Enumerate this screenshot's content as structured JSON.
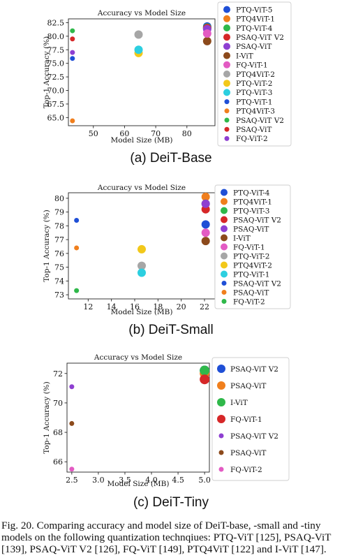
{
  "figure_caption": "Fig. 20.  Comparing accuracy and model size of DeiT-base, -small and -tiny models on the following quantization technqiues: PTQ-ViT [125], PSAQ-ViT [139], PSAQ-ViT V2 [126], FQ-ViT [149], PTQ4ViT [122] and I-ViT [147].",
  "chart_data": [
    {
      "type": "scatter",
      "subcaption": "(a) DeiT-Base",
      "title": "Accuracy vs Model Size",
      "xlabel": "Model Size (MB)",
      "ylabel": "Top-1 Accuracy (%)",
      "xlim": [
        42,
        89
      ],
      "ylim": [
        63.5,
        83.2
      ],
      "xticks": [
        50,
        60,
        70,
        80
      ],
      "yticks": [
        65.0,
        67.5,
        70.0,
        72.5,
        75.0,
        77.5,
        80.0,
        82.5
      ],
      "ytick_labels": [
        "65.0",
        "67.5",
        "70.0",
        "72.5",
        "75.0",
        "77.5",
        "80.0",
        "82.5"
      ],
      "grid": false,
      "legend_position": "right",
      "series": [
        {
          "name": "PTQ-ViT-5",
          "color": "#1f4fd6",
          "size": "large",
          "points": [
            [
              86.5,
              81.8
            ]
          ]
        },
        {
          "name": "PTQ4ViT-1",
          "color": "#f07f1d",
          "size": "large",
          "points": [
            [
              86.5,
              81.5
            ]
          ]
        },
        {
          "name": "PTQ-ViT-4",
          "color": "#2fb84a",
          "size": "large",
          "points": [
            [
              86.5,
              81.6
            ]
          ]
        },
        {
          "name": "PSAQ-ViT V2",
          "color": "#d62728",
          "size": "large",
          "points": [
            [
              86.5,
              81.5
            ]
          ]
        },
        {
          "name": "PSAQ-ViT",
          "color": "#8e3fd1",
          "size": "large",
          "points": [
            [
              86.5,
              81.3
            ]
          ]
        },
        {
          "name": "I-ViT",
          "color": "#8c4a1c",
          "size": "large",
          "points": [
            [
              86.5,
              79.1
            ]
          ]
        },
        {
          "name": "FQ-ViT-1",
          "color": "#e35bc3",
          "size": "large",
          "points": [
            [
              86.5,
              80.5
            ]
          ]
        },
        {
          "name": "PTQ4ViT-2",
          "color": "#a6a6a6",
          "size": "large",
          "points": [
            [
              64.5,
              80.3
            ]
          ]
        },
        {
          "name": "PTQ-ViT-2",
          "color": "#f2c81a",
          "size": "large",
          "points": [
            [
              64.5,
              76.9
            ]
          ]
        },
        {
          "name": "PTQ-ViT-3",
          "color": "#2ccfe0",
          "size": "large",
          "points": [
            [
              64.5,
              77.5
            ]
          ]
        },
        {
          "name": "PTQ-ViT-1",
          "color": "#1f4fd6",
          "size": "small",
          "points": [
            [
              43.3,
              75.9
            ]
          ]
        },
        {
          "name": "PTQ4ViT-3",
          "color": "#f07f1d",
          "size": "small",
          "points": [
            [
              43.3,
              64.4
            ]
          ]
        },
        {
          "name": "PSAQ-ViT V2",
          "color": "#2fb84a",
          "size": "small",
          "points": [
            [
              43.3,
              81.0
            ]
          ]
        },
        {
          "name": "PSAQ-ViT",
          "color": "#d62728",
          "size": "small",
          "points": [
            [
              43.3,
              79.5
            ]
          ]
        },
        {
          "name": "FQ-ViT-2",
          "color": "#8e3fd1",
          "size": "small",
          "points": [
            [
              43.3,
              77.0
            ]
          ]
        }
      ]
    },
    {
      "type": "scatter",
      "subcaption": "(b) DeiT-Small",
      "title": "Accuracy vs Model Size",
      "xlabel": "Model Size (MB)",
      "ylabel": "Top-1 Accuracy (%)",
      "xlim": [
        10.3,
        22.9
      ],
      "ylim": [
        72.7,
        80.4
      ],
      "xticks": [
        12,
        14,
        16,
        18,
        20,
        22
      ],
      "yticks": [
        73,
        74,
        75,
        76,
        77,
        78,
        79,
        80
      ],
      "ytick_labels": [
        "73",
        "74",
        "75",
        "76",
        "77",
        "78",
        "79",
        "80"
      ],
      "grid": false,
      "legend_position": "right",
      "series": [
        {
          "name": "PTQ-ViT-4",
          "color": "#1f4fd6",
          "size": "large",
          "points": [
            [
              22.1,
              78.1
            ]
          ]
        },
        {
          "name": "PTQ4ViT-1",
          "color": "#f07f1d",
          "size": "large",
          "points": [
            [
              22.1,
              80.1
            ]
          ]
        },
        {
          "name": "PTQ-ViT-3",
          "color": "#2fb84a",
          "size": "large",
          "points": [
            [
              22.1,
              79.6
            ]
          ]
        },
        {
          "name": "PSAQ-ViT V2",
          "color": "#d62728",
          "size": "large",
          "points": [
            [
              22.1,
              79.2
            ]
          ]
        },
        {
          "name": "PSAQ-ViT",
          "color": "#8e3fd1",
          "size": "large",
          "points": [
            [
              22.1,
              79.6
            ]
          ]
        },
        {
          "name": "I-ViT",
          "color": "#8c4a1c",
          "size": "large",
          "points": [
            [
              22.1,
              76.9
            ]
          ]
        },
        {
          "name": "FQ-ViT-1",
          "color": "#e35bc3",
          "size": "large",
          "points": [
            [
              22.1,
              77.5
            ]
          ]
        },
        {
          "name": "PTQ-ViT-2",
          "color": "#a6a6a6",
          "size": "large",
          "points": [
            [
              16.6,
              75.1
            ]
          ]
        },
        {
          "name": "PTQ4ViT-2",
          "color": "#f2c81a",
          "size": "large",
          "points": [
            [
              16.6,
              76.3
            ]
          ]
        },
        {
          "name": "PTQ-ViT-1",
          "color": "#2ccfe0",
          "size": "large",
          "points": [
            [
              16.6,
              74.6
            ]
          ]
        },
        {
          "name": "PSAQ-ViT V2",
          "color": "#1f4fd6",
          "size": "small",
          "points": [
            [
              11.0,
              78.4
            ]
          ]
        },
        {
          "name": "PSAQ-ViT",
          "color": "#f07f1d",
          "size": "small",
          "points": [
            [
              11.0,
              76.4
            ]
          ]
        },
        {
          "name": "FQ-ViT-2",
          "color": "#2fb84a",
          "size": "small",
          "points": [
            [
              11.0,
              73.3
            ]
          ]
        }
      ]
    },
    {
      "type": "scatter",
      "subcaption": "(c) DeiT-Tiny",
      "title": "Accuracy vs Model Size",
      "xlabel": "Model Size (MB)",
      "ylabel": "Top-1 Accuracy (%)",
      "xlim": [
        2.41,
        5.09
      ],
      "ylim": [
        65.3,
        72.7
      ],
      "xticks": [
        2.5,
        3.0,
        3.5,
        4.0,
        4.5,
        5.0
      ],
      "xtick_labels": [
        "2.5",
        "3.0",
        "3.5",
        "4.0",
        "4.5",
        "5.0"
      ],
      "yticks": [
        66,
        68,
        70,
        72
      ],
      "ytick_labels": [
        "66",
        "68",
        "70",
        "72"
      ],
      "grid": false,
      "legend_position": "right",
      "series": [
        {
          "name": "PSAQ-ViT V2",
          "color": "#1f4fd6",
          "size": "large",
          "points": [
            [
              5.0,
              72.2
            ]
          ]
        },
        {
          "name": "PSAQ-ViT",
          "color": "#f07f1d",
          "size": "large",
          "points": [
            [
              5.0,
              72.0
            ]
          ]
        },
        {
          "name": "I-ViT",
          "color": "#2fb84a",
          "size": "large",
          "points": [
            [
              5.0,
              72.2
            ]
          ]
        },
        {
          "name": "FQ-ViT-1",
          "color": "#d62728",
          "size": "large",
          "points": [
            [
              5.0,
              71.6
            ]
          ]
        },
        {
          "name": "PSAQ-ViT V2",
          "color": "#8e3fd1",
          "size": "small",
          "points": [
            [
              2.5,
              71.1
            ]
          ]
        },
        {
          "name": "PSAQ-ViT",
          "color": "#8c4a1c",
          "size": "small",
          "points": [
            [
              2.5,
              68.6
            ]
          ]
        },
        {
          "name": "FQ-ViT-2",
          "color": "#e35bc3",
          "size": "small",
          "points": [
            [
              2.5,
              65.5
            ]
          ]
        }
      ]
    }
  ]
}
